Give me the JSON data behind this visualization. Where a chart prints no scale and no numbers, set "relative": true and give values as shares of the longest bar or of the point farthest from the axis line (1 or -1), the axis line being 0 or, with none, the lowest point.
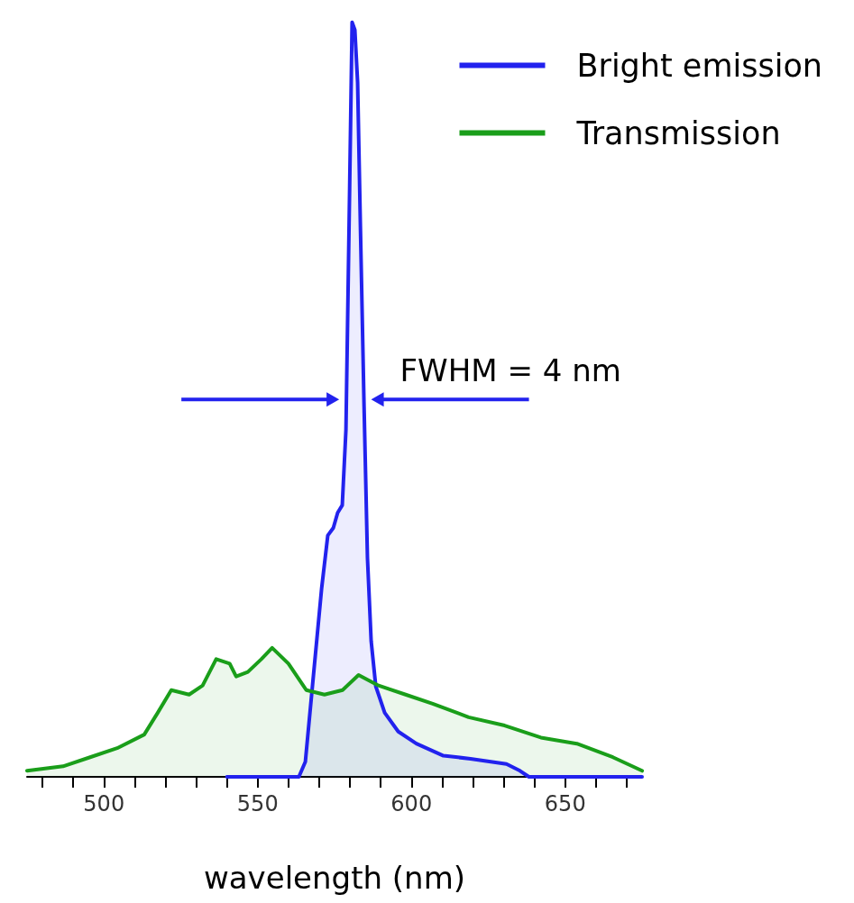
{
  "chart_data": {
    "type": "area",
    "relative": true,
    "xlabel": "wavelength (nm)",
    "xlim": [
      475,
      675
    ],
    "xticks": [
      {
        "value": 480,
        "label": null
      },
      {
        "value": 490,
        "label": null
      },
      500,
      {
        "value": 510,
        "label": null
      },
      {
        "value": 520,
        "label": null
      },
      {
        "value": 530,
        "label": null
      },
      {
        "value": 540,
        "label": null
      },
      550,
      {
        "value": 560,
        "label": null
      },
      {
        "value": 570,
        "label": null
      },
      {
        "value": 580,
        "label": null
      },
      {
        "value": 590,
        "label": null
      },
      600,
      {
        "value": 610,
        "label": null
      },
      {
        "value": 620,
        "label": null
      },
      {
        "value": 630,
        "label": null
      },
      {
        "value": 640,
        "label": null
      },
      650,
      {
        "value": 660,
        "label": null
      },
      {
        "value": 670,
        "label": null
      }
    ],
    "legend": "top right",
    "marker": "none",
    "grid": false,
    "annotations": [
      "FWHM = 4 nm"
    ],
    "series": [
      {
        "name": "Bright emission",
        "color": "#2222ee",
        "x": [
          540,
          563.4,
          565.5,
          567.8,
          570.8,
          572.8,
          574.6,
          576,
          577.5,
          578.7,
          579.9,
          580.7,
          581.6,
          582.5,
          583.4,
          584.6,
          585.7,
          586.9,
          588.4,
          591.3,
          595.7,
          601.6,
          610.4,
          619.2,
          630.9,
          635.3,
          638.2,
          675
        ],
        "values": [
          0,
          0,
          0.02,
          0.12,
          0.25,
          0.32,
          0.33,
          0.35,
          0.36,
          0.46,
          0.78,
          1,
          0.99,
          0.92,
          0.73,
          0.49,
          0.29,
          0.18,
          0.12,
          0.085,
          0.06,
          0.044,
          0.028,
          0.024,
          0.017,
          0.008,
          0,
          0
        ]
      },
      {
        "name": "Transmission",
        "color": "#1a9e1a",
        "x": [
          475,
          486.7,
          495.5,
          504.3,
          513.1,
          517.5,
          521.9,
          527.7,
          532.1,
          536.5,
          540.9,
          543,
          546.8,
          551.2,
          554.7,
          560,
          565.8,
          571.7,
          577.6,
          582.8,
          589.3,
          598.1,
          606.9,
          618.6,
          630.3,
          642.1,
          653.8,
          665.5,
          675
        ],
        "values": [
          0.008,
          0.014,
          0.026,
          0.038,
          0.056,
          0.085,
          0.115,
          0.109,
          0.121,
          0.156,
          0.15,
          0.133,
          0.139,
          0.156,
          0.171,
          0.15,
          0.115,
          0.109,
          0.115,
          0.135,
          0.121,
          0.109,
          0.097,
          0.079,
          0.068,
          0.052,
          0.044,
          0.026,
          0.008
        ]
      }
    ]
  }
}
